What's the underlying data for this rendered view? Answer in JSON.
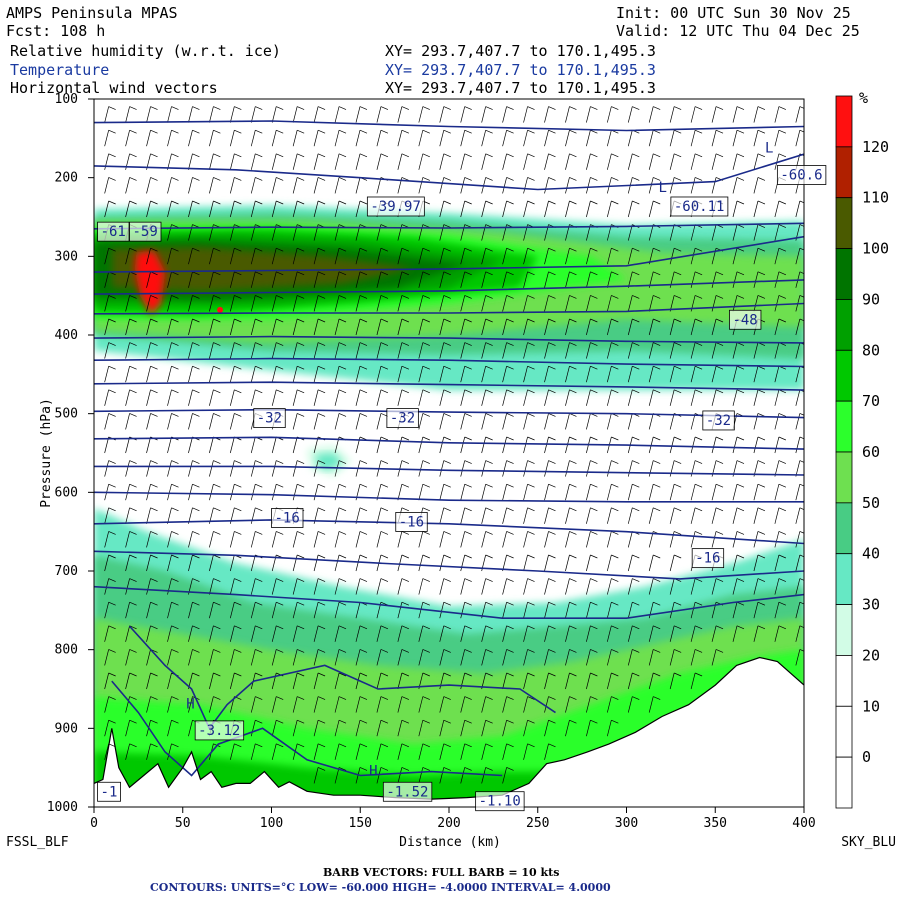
{
  "header": {
    "model": "AMPS Peninsula MPAS",
    "init": "Init: 00 UTC Sun 30 Nov 25",
    "fcst": "Fcst: 108 h",
    "valid": "Valid: 12 UTC Thu 04 Dec 25",
    "fields": [
      {
        "name": "Relative humidity (w.r.t. ice)",
        "xy": "XY= 293.7,407.7 to 170.1,495.3"
      },
      {
        "name": "Temperature",
        "xy": "XY= 293.7,407.7 to 170.1,495.3"
      },
      {
        "name": "Horizontal wind vectors",
        "xy": "XY= 293.7,407.7 to 170.1,495.3"
      }
    ]
  },
  "colors": {
    "contour": "#1a2a8a",
    "rh_bins": [
      "#ffffff",
      "#ffffff",
      "#ffffff",
      "#ffffff",
      "#d2fce6",
      "#66e8c4",
      "#48cc84",
      "#6ee050",
      "#2cff2c",
      "#00c800",
      "#00a000",
      "#007400",
      "#4a5a00",
      "#b02000",
      "#ff1010"
    ]
  },
  "chart_data": {
    "type": "heatmap",
    "xlabel": "Distance (km)",
    "ylabel": "Pressure (hPa)",
    "xlim": [
      0,
      400
    ],
    "ylim": [
      1000,
      100
    ],
    "x_ticks": [
      "0",
      "50",
      "100",
      "150",
      "200",
      "250",
      "300",
      "350",
      "400"
    ],
    "y_ticks": [
      "100",
      "200",
      "300",
      "400",
      "500",
      "600",
      "700",
      "800",
      "900",
      "1000"
    ],
    "left_label": "FSSL_BLF",
    "right_label": "SKY_BLU",
    "colorbar": {
      "units": "%",
      "labels": [
        "120",
        "110",
        "100",
        "90",
        "80",
        "70",
        "60",
        "50",
        "40",
        "30",
        "20",
        "10",
        "0"
      ]
    },
    "contour_labels": [
      {
        "text": "-32",
        "x": 90,
        "p": 505
      },
      {
        "text": "-32",
        "x": 165,
        "p": 505
      },
      {
        "text": "-32",
        "x": 343,
        "p": 508
      },
      {
        "text": "-16",
        "x": 100,
        "p": 632
      },
      {
        "text": "-16",
        "x": 170,
        "p": 637
      },
      {
        "text": "-16",
        "x": 337,
        "p": 683
      },
      {
        "text": "-48",
        "x": 358,
        "p": 380
      },
      {
        "text": "-39.97",
        "x": 154,
        "p": 236
      },
      {
        "text": "-60.11",
        "x": 325,
        "p": 236
      },
      {
        "text": "-60.6",
        "x": 385,
        "p": 196
      },
      {
        "text": "-3.12",
        "x": 57,
        "p": 902
      },
      {
        "text": "-1.52",
        "x": 163,
        "p": 980
      },
      {
        "text": "-1.10",
        "x": 215,
        "p": 992
      },
      {
        "text": "-1",
        "x": 2,
        "p": 980
      },
      {
        "text": "-61",
        "x": 2,
        "p": 268
      },
      {
        "text": "-59",
        "x": 20,
        "p": 268
      }
    ],
    "extrema_markers": [
      {
        "text": "H",
        "x": 52,
        "p": 875
      },
      {
        "text": "H",
        "x": 155,
        "p": 960
      },
      {
        "text": "L",
        "x": 318,
        "p": 218
      },
      {
        "text": "L",
        "x": 378,
        "p": 168
      }
    ],
    "footer": {
      "barbs": "BARB VECTORS: FULL BARB = 10 kts",
      "contours": "CONTOURS: UNITS=°C LOW= -60.000 HIGH= -4.0000 INTERVAL= 4.0000"
    }
  }
}
